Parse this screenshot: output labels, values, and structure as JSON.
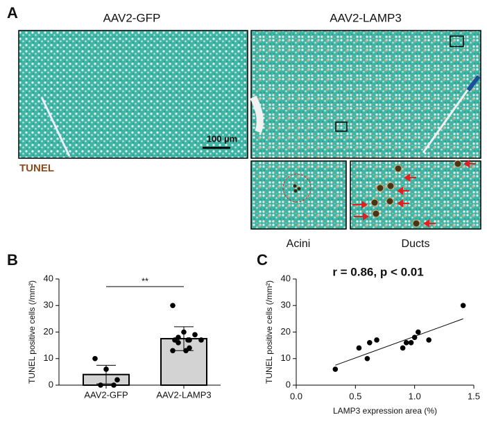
{
  "panel_labels": [
    "A",
    "B",
    "C"
  ],
  "images": {
    "left_title": "AAV2-GFP",
    "right_title": "AAV2-LAMP3",
    "scale_bar": "100 µm",
    "stain": "TUNEL",
    "inset_labels": [
      "Acini",
      "Ducts"
    ]
  },
  "chart_data": [
    {
      "type": "bar",
      "ylabel": "TUNEL positive cells (/mm²)",
      "categories": [
        "AAV2-GFP",
        "AAV2-LAMP3"
      ],
      "values": [
        4,
        17.5
      ],
      "errors": [
        3.5,
        4.5
      ],
      "points": [
        [
          10,
          6,
          2,
          0,
          0
        ],
        [
          30,
          20,
          19,
          18,
          17,
          17,
          17,
          17,
          16,
          14,
          13,
          13
        ]
      ],
      "significance": "**",
      "color": "#d3d3d3",
      "ylim": [
        0,
        40
      ],
      "yticks": [
        0,
        10,
        20,
        30,
        40
      ]
    },
    {
      "type": "scatter",
      "title": "r = 0.86, p < 0.01",
      "xlabel": "LAMP3 expression area (%)",
      "ylabel": "TUNEL positive cells (/mm²)",
      "x": [
        0.33,
        0.53,
        0.6,
        0.62,
        0.68,
        0.9,
        0.93,
        0.97,
        1.0,
        1.03,
        1.12,
        1.41
      ],
      "y": [
        6,
        14,
        10,
        16,
        17,
        14,
        16,
        16,
        18,
        20,
        17,
        30
      ],
      "fit": {
        "x": [
          0.33,
          1.41
        ],
        "y": [
          7.5,
          25
        ]
      },
      "xlim": [
        0,
        1.5
      ],
      "xticks": [
        {
          "value": 0,
          "label": "0.0"
        },
        0.5,
        {
          "value": 1,
          "label": "1.0"
        },
        1.5
      ],
      "ylim": [
        0,
        40
      ],
      "yticks": [
        0,
        10,
        20,
        30,
        40
      ]
    }
  ]
}
